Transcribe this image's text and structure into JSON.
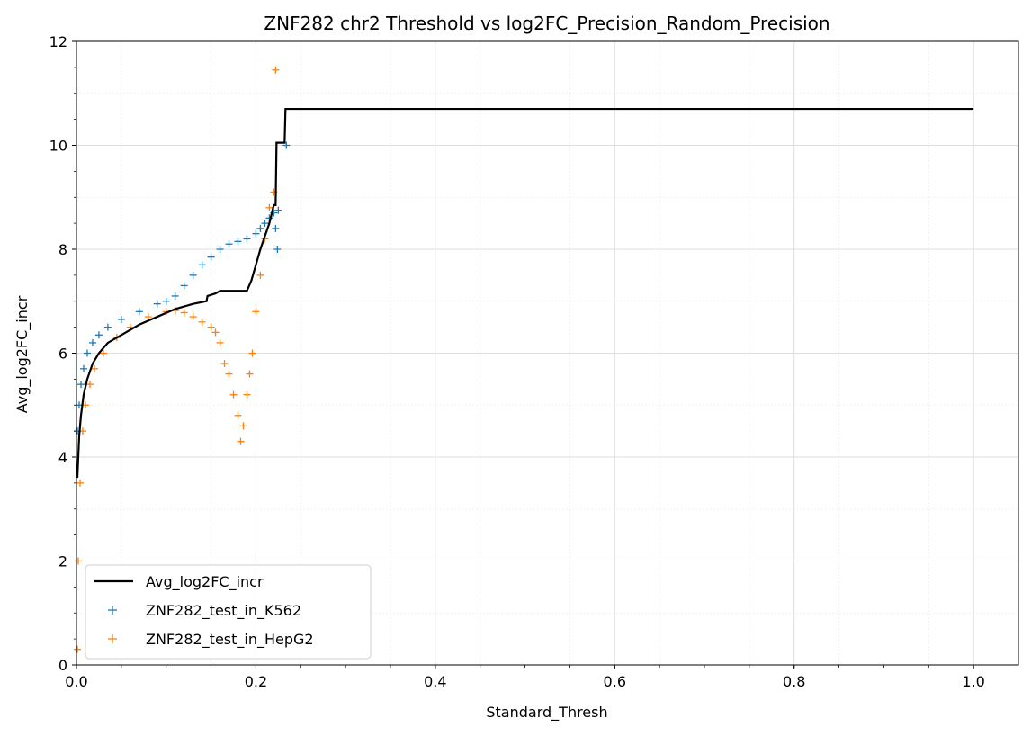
{
  "chart_data": {
    "type": "scatter",
    "title": "ZNF282 chr2 Threshold vs log2FC_Precision_Random_Precision",
    "xlabel": "Standard_Thresh",
    "ylabel": "Avg_log2FC_incr",
    "xlim": [
      0,
      1.05
    ],
    "ylim": [
      0,
      12
    ],
    "xticks": [
      0.0,
      0.2,
      0.4,
      0.6,
      0.8,
      1.0
    ],
    "xtick_labels": [
      "0.0",
      "0.2",
      "0.4",
      "0.6",
      "0.8",
      "1.0"
    ],
    "yticks": [
      0,
      2,
      4,
      6,
      8,
      10,
      12
    ],
    "ytick_labels": [
      "0",
      "2",
      "4",
      "6",
      "8",
      "10",
      "12"
    ],
    "grid": true,
    "legend_position": "lower-left",
    "series": [
      {
        "name": "Avg_log2FC_incr",
        "kind": "line",
        "color": "#000000",
        "x": [
          0.001,
          0.003,
          0.005,
          0.008,
          0.012,
          0.018,
          0.025,
          0.035,
          0.05,
          0.07,
          0.09,
          0.11,
          0.13,
          0.145,
          0.146,
          0.155,
          0.16,
          0.19,
          0.195,
          0.205,
          0.215,
          0.22,
          0.221,
          0.222,
          0.223,
          0.224,
          0.232,
          0.233,
          0.234,
          1.0
        ],
        "y": [
          3.6,
          4.4,
          4.8,
          5.2,
          5.5,
          5.8,
          6.0,
          6.2,
          6.35,
          6.55,
          6.7,
          6.85,
          6.95,
          7.0,
          7.1,
          7.15,
          7.2,
          7.2,
          7.4,
          8.0,
          8.5,
          8.85,
          8.85,
          8.85,
          10.05,
          10.05,
          10.05,
          10.7,
          10.7,
          10.7
        ]
      },
      {
        "name": "ZNF282_test_in_K562",
        "kind": "scatter",
        "marker": "+",
        "color": "#1f77b4",
        "x": [
          0.001,
          0.003,
          0.005,
          0.008,
          0.012,
          0.018,
          0.025,
          0.035,
          0.05,
          0.07,
          0.09,
          0.1,
          0.11,
          0.12,
          0.13,
          0.14,
          0.15,
          0.16,
          0.17,
          0.18,
          0.19,
          0.2,
          0.205,
          0.21,
          0.215,
          0.22,
          0.225,
          0.222,
          0.224,
          0.234
        ],
        "y": [
          4.5,
          5.0,
          5.4,
          5.7,
          6.0,
          6.2,
          6.35,
          6.5,
          6.65,
          6.8,
          6.95,
          7.0,
          7.1,
          7.3,
          7.5,
          7.7,
          7.85,
          8.0,
          8.1,
          8.15,
          8.2,
          8.3,
          8.4,
          8.5,
          8.6,
          8.7,
          8.75,
          8.4,
          8.0,
          10.0
        ]
      },
      {
        "name": "ZNF282_test_in_HepG2",
        "kind": "scatter",
        "marker": "+",
        "color": "#ff7f0e",
        "x": [
          0.001,
          0.002,
          0.004,
          0.007,
          0.01,
          0.015,
          0.02,
          0.03,
          0.045,
          0.06,
          0.08,
          0.1,
          0.11,
          0.12,
          0.13,
          0.14,
          0.15,
          0.155,
          0.16,
          0.165,
          0.17,
          0.175,
          0.18,
          0.183,
          0.186,
          0.19,
          0.193,
          0.196,
          0.2,
          0.205,
          0.21,
          0.215,
          0.22,
          0.222
        ],
        "y": [
          0.3,
          2.0,
          3.5,
          4.5,
          5.0,
          5.4,
          5.7,
          6.0,
          6.3,
          6.5,
          6.7,
          6.8,
          6.82,
          6.78,
          6.7,
          6.6,
          6.5,
          6.4,
          6.2,
          5.8,
          5.6,
          5.2,
          4.8,
          4.3,
          4.6,
          5.2,
          5.6,
          6.0,
          6.8,
          7.5,
          8.2,
          8.8,
          9.1,
          11.45
        ]
      }
    ]
  }
}
